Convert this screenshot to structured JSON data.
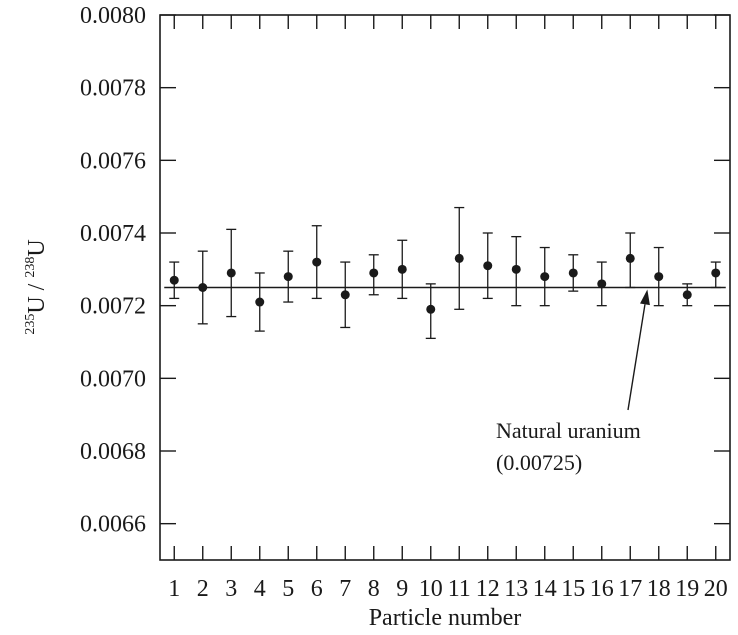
{
  "chart_data": {
    "type": "scatter",
    "xlabel": "Particle number",
    "ylabel": {
      "iso1_mass": "235",
      "iso1_symbol": "U",
      "separator": " / ",
      "iso2_mass": "238",
      "iso2_symbol": "U"
    },
    "xlim": [
      0.5,
      20.5
    ],
    "ylim": [
      0.0065,
      0.008
    ],
    "x_ticks": [
      1,
      2,
      3,
      4,
      5,
      6,
      7,
      8,
      9,
      10,
      11,
      12,
      13,
      14,
      15,
      16,
      17,
      18,
      19,
      20
    ],
    "x_tick_labels": [
      "1",
      "2",
      "3",
      "4",
      "5",
      "6",
      "7",
      "8",
      "9",
      "10",
      "11",
      "12",
      "13",
      "14",
      "15",
      "16",
      "17",
      "18",
      "19",
      "20"
    ],
    "y_ticks": [
      0.0066,
      0.0068,
      0.007,
      0.0072,
      0.0074,
      0.0076,
      0.0078,
      0.008
    ],
    "y_tick_labels": [
      "0.0066",
      "0.0068",
      "0.0070",
      "0.0072",
      "0.0074",
      "0.0076",
      "0.0078",
      "0.0080"
    ],
    "grid": false,
    "points": [
      {
        "x": 1,
        "y": 0.00727,
        "err_low": 0.00722,
        "err_high": 0.00732
      },
      {
        "x": 2,
        "y": 0.00725,
        "err_low": 0.00715,
        "err_high": 0.00735
      },
      {
        "x": 3,
        "y": 0.00729,
        "err_low": 0.00717,
        "err_high": 0.00741
      },
      {
        "x": 4,
        "y": 0.00721,
        "err_low": 0.00713,
        "err_high": 0.00729
      },
      {
        "x": 5,
        "y": 0.00728,
        "err_low": 0.00721,
        "err_high": 0.00735
      },
      {
        "x": 6,
        "y": 0.00732,
        "err_low": 0.00722,
        "err_high": 0.00742
      },
      {
        "x": 7,
        "y": 0.00723,
        "err_low": 0.00714,
        "err_high": 0.00732
      },
      {
        "x": 8,
        "y": 0.00729,
        "err_low": 0.00723,
        "err_high": 0.00734
      },
      {
        "x": 9,
        "y": 0.0073,
        "err_low": 0.00722,
        "err_high": 0.00738
      },
      {
        "x": 10,
        "y": 0.00719,
        "err_low": 0.00711,
        "err_high": 0.00726
      },
      {
        "x": 11,
        "y": 0.00733,
        "err_low": 0.00719,
        "err_high": 0.00747
      },
      {
        "x": 12,
        "y": 0.00731,
        "err_low": 0.00722,
        "err_high": 0.0074
      },
      {
        "x": 13,
        "y": 0.0073,
        "err_low": 0.0072,
        "err_high": 0.00739
      },
      {
        "x": 14,
        "y": 0.00728,
        "err_low": 0.0072,
        "err_high": 0.00736
      },
      {
        "x": 15,
        "y": 0.00729,
        "err_low": 0.00724,
        "err_high": 0.00734
      },
      {
        "x": 16,
        "y": 0.00726,
        "err_low": 0.0072,
        "err_high": 0.00732
      },
      {
        "x": 17,
        "y": 0.00733,
        "err_low": 0.00725,
        "err_high": 0.0074
      },
      {
        "x": 18,
        "y": 0.00728,
        "err_low": 0.0072,
        "err_high": 0.00736
      },
      {
        "x": 19,
        "y": 0.00723,
        "err_low": 0.0072,
        "err_high": 0.00726
      },
      {
        "x": 20,
        "y": 0.00729,
        "err_low": 0.00725,
        "err_high": 0.00732
      }
    ],
    "reference_line": {
      "y": 0.00725
    },
    "annotation": {
      "line1": "Natural uranium",
      "line2": "(0.00725)",
      "arrow_target": {
        "x": 17.6,
        "y": 0.00725
      }
    }
  }
}
